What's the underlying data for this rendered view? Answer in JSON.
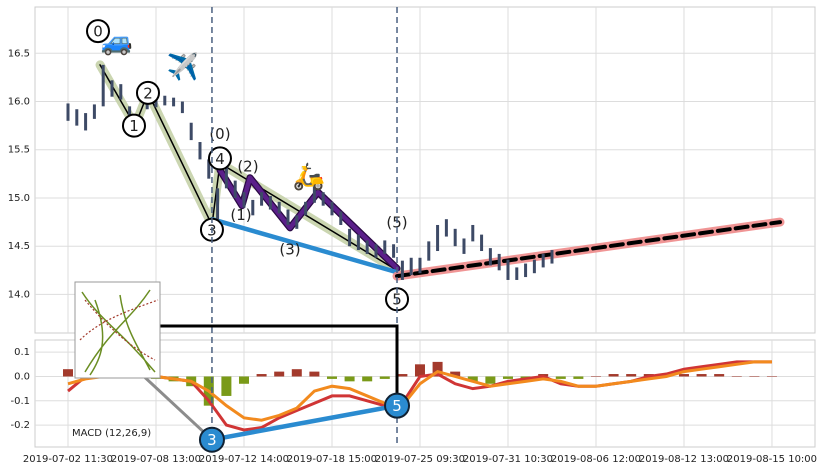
{
  "chart_data": [
    {
      "type": "candlestick",
      "color": "#3d4a66",
      "grid": true,
      "x": [
        0,
        1,
        2,
        3,
        4,
        5,
        6,
        7,
        8,
        9,
        10,
        11,
        12,
        13,
        14,
        15,
        16,
        17,
        18,
        19,
        20,
        21,
        22,
        23,
        24,
        25,
        26,
        27,
        28,
        29,
        30,
        31,
        32,
        33,
        34,
        35,
        36,
        37,
        38,
        39,
        40,
        41,
        42,
        43,
        44,
        45,
        46,
        47,
        48,
        49,
        50,
        51,
        52,
        53,
        54,
        55
      ],
      "high": [
        15.98,
        15.92,
        15.88,
        15.97,
        16.38,
        16.22,
        16.18,
        15.95,
        15.82,
        16.06,
        16.05,
        16.06,
        16.04,
        16.0,
        15.78,
        15.58,
        15.4,
        15.1,
        15.38,
        15.18,
        15.06,
        14.98,
        15.06,
        15.02,
        14.96,
        14.88,
        14.82,
        14.96,
        15.12,
        15.06,
        14.96,
        14.86,
        14.68,
        14.62,
        14.56,
        14.52,
        14.56,
        14.52,
        14.35,
        14.38,
        14.38,
        14.55,
        14.72,
        14.78,
        14.68,
        14.58,
        14.72,
        14.62,
        14.48,
        14.42,
        14.36,
        14.28,
        14.32,
        14.36,
        14.42,
        14.46
      ],
      "low": [
        15.8,
        15.75,
        15.7,
        15.82,
        15.95,
        16.05,
        16.02,
        15.75,
        15.68,
        15.92,
        15.94,
        15.96,
        15.95,
        15.88,
        15.6,
        15.4,
        15.2,
        14.68,
        15.1,
        15.0,
        14.9,
        14.82,
        14.92,
        14.88,
        14.84,
        14.72,
        14.68,
        14.82,
        14.95,
        14.92,
        14.82,
        14.72,
        14.5,
        14.46,
        14.42,
        14.38,
        14.42,
        14.38,
        14.15,
        14.2,
        14.22,
        14.35,
        14.45,
        14.6,
        14.5,
        14.42,
        14.55,
        14.45,
        14.3,
        14.25,
        14.15,
        14.15,
        14.18,
        14.22,
        14.28,
        14.32
      ],
      "xlim": [
        -3.75,
        84.89
      ],
      "ylim": [
        13.6,
        16.98
      ],
      "yticks": [
        {
          "value": 14.0,
          "label": "14.0"
        },
        14.5,
        {
          "value": 15.0,
          "label": "15.0"
        },
        15.5,
        {
          "value": 16.0,
          "label": "16.0"
        },
        16.5
      ],
      "vlines": [
        16.36,
        37.39
      ],
      "lines": [
        {
          "style": "band",
          "color": "#c5d2a8",
          "x": [
            3.64,
            7.61,
            9.09,
            16.36,
            17.27,
            37.39
          ],
          "y": [
            16.38,
            15.75,
            16.09,
            14.72,
            15.36,
            14.25
          ]
        },
        {
          "style": "thin",
          "color": "#000000",
          "x": [
            3.64,
            7.61,
            9.09,
            16.36,
            17.27,
            37.39
          ],
          "y": [
            16.38,
            15.75,
            16.09,
            14.72,
            15.36,
            14.25
          ]
        },
        {
          "style": "thick",
          "color": "#5b1f8a",
          "x": [
            17.27,
            19.77,
            20.68,
            25.23,
            28.41,
            37.39
          ],
          "y": [
            15.29,
            14.92,
            15.21,
            14.69,
            15.06,
            14.27
          ]
        },
        {
          "style": "thick",
          "color": "#2a8bd0",
          "x": [
            16.36,
            37.39
          ],
          "y": [
            14.78,
            14.23
          ]
        },
        {
          "style": "band",
          "color": "#ee8a8a",
          "x": [
            37.39,
            80.91
          ],
          "y": [
            14.19,
            14.75
          ]
        },
        {
          "style": "dashed",
          "color": "#000000",
          "x": [
            37.39,
            80.91
          ],
          "y": [
            14.19,
            14.75
          ]
        }
      ],
      "annotations": [
        {
          "text": "0",
          "x": 3.41,
          "y": 16.73,
          "circled": true
        },
        {
          "text": "1",
          "x": 7.5,
          "y": 15.75,
          "circled": true
        },
        {
          "text": "2",
          "x": 9.09,
          "y": 16.09,
          "circled": true
        },
        {
          "text": "3",
          "x": 16.36,
          "y": 14.67,
          "circled": true
        },
        {
          "text": "4",
          "x": 17.27,
          "y": 15.41,
          "circled": true
        },
        {
          "text": "5",
          "x": 37.39,
          "y": 13.95,
          "circled": true
        },
        {
          "text": "(0)",
          "x": 17.27,
          "y": 15.67,
          "circled": false
        },
        {
          "text": "(1)",
          "x": 19.66,
          "y": 14.83,
          "circled": false
        },
        {
          "text": "(2)",
          "x": 20.45,
          "y": 15.33,
          "circled": false
        },
        {
          "text": "(3)",
          "x": 25.23,
          "y": 14.47,
          "circled": false
        },
        {
          "text": "(5)",
          "x": 37.39,
          "y": 14.75,
          "circled": false
        }
      ],
      "icons": [
        {
          "text": "🚙",
          "x": 5.57,
          "y": 16.61
        },
        {
          "text": "✈️",
          "x": 13.07,
          "y": 16.35
        },
        {
          "text": "🛵",
          "x": 27.4,
          "y": 15.21
        }
      ]
    },
    {
      "type": "macd",
      "label": "MACD (12,26,9)",
      "grid": true,
      "x": [
        0,
        2,
        4,
        6,
        8,
        10,
        12,
        14,
        16,
        18,
        20,
        22,
        24,
        26,
        28,
        30,
        32,
        34,
        36,
        38,
        40,
        42,
        44,
        46,
        48,
        50,
        52,
        54,
        56,
        58,
        60,
        62,
        64,
        66,
        68,
        70,
        72,
        74,
        76,
        78,
        80
      ],
      "series": [
        {
          "color": "#d03535",
          "values": [
            -0.06,
            0.0,
            0.03,
            0.02,
            0.0,
            0.0,
            -0.01,
            -0.02,
            -0.1,
            -0.2,
            -0.22,
            -0.21,
            -0.17,
            -0.14,
            -0.11,
            -0.08,
            -0.08,
            -0.1,
            -0.12,
            -0.11,
            0.0,
            0.01,
            -0.03,
            -0.05,
            -0.04,
            -0.02,
            -0.01,
            0.0,
            -0.03,
            -0.04,
            -0.04,
            -0.03,
            -0.02,
            0.0,
            0.01,
            0.03,
            0.04,
            0.05,
            0.06,
            0.06,
            0.06
          ]
        },
        {
          "color": "#f28a1e",
          "values": [
            -0.03,
            -0.01,
            0.0,
            0.0,
            0.01,
            0.0,
            -0.01,
            -0.02,
            -0.06,
            -0.12,
            -0.17,
            -0.18,
            -0.16,
            -0.13,
            -0.06,
            -0.04,
            -0.05,
            -0.08,
            -0.11,
            -0.12,
            -0.03,
            0.02,
            0.0,
            -0.02,
            -0.04,
            -0.03,
            -0.02,
            -0.01,
            -0.02,
            -0.04,
            -0.04,
            -0.03,
            -0.02,
            -0.01,
            0.0,
            0.02,
            0.03,
            0.04,
            0.05,
            0.06,
            0.06
          ]
        }
      ],
      "histogram": {
        "positive_color": "#a33a2c",
        "negative_color": "#7a9a18",
        "values": [
          0.03,
          0.01,
          0.02,
          0.03,
          0.02,
          -0.01,
          -0.02,
          -0.04,
          -0.12,
          -0.08,
          -0.03,
          0.01,
          0.02,
          0.03,
          0.02,
          -0.01,
          -0.02,
          -0.02,
          -0.01,
          0.01,
          0.05,
          0.06,
          0.02,
          -0.02,
          -0.03,
          -0.01,
          -0.01,
          0.01,
          -0.01,
          -0.01,
          0.0,
          0.01,
          0.01,
          0.01,
          0.01,
          0.01,
          0.01,
          0.01,
          0.0,
          0.0,
          0.0
        ]
      },
      "xlim": [
        -3.75,
        84.89
      ],
      "ylim": [
        -0.29,
        0.15
      ],
      "yticks": [
        -0.2,
        -0.1,
        {
          "value": 0.0,
          "label": "0.0"
        },
        0.1
      ],
      "xticks": [
        {
          "value": 0,
          "label": "2019-07-02 11:30"
        },
        {
          "value": 10,
          "label": "2019-07-08 13:00"
        },
        {
          "value": 20,
          "label": "2019-07-12 14:00"
        },
        {
          "value": 30,
          "label": "2019-07-18 15:00"
        },
        {
          "value": 40,
          "label": "2019-07-25 09:30"
        },
        {
          "value": 50,
          "label": "2019-07-31 10:30"
        },
        {
          "value": 60,
          "label": "2019-08-06 12:00"
        },
        {
          "value": 70,
          "label": "2019-08-12 13:00"
        },
        {
          "value": 80,
          "label": "2019-08-15 10:00"
        }
      ],
      "lines": [
        {
          "style": "grey",
          "color": "#8c8c8c",
          "x": [
            8.18,
            16.36
          ],
          "y": [
            0.015,
            -0.26
          ]
        },
        {
          "style": "thick",
          "color": "#2a8bd0",
          "x": [
            16.36,
            37.39
          ],
          "y": [
            -0.26,
            -0.12
          ]
        }
      ],
      "annotations": [
        {
          "text": "3",
          "x": 16.36,
          "y": -0.26,
          "filled": true
        },
        {
          "text": "5",
          "x": 37.39,
          "y": -0.12,
          "filled": true
        }
      ]
    }
  ]
}
